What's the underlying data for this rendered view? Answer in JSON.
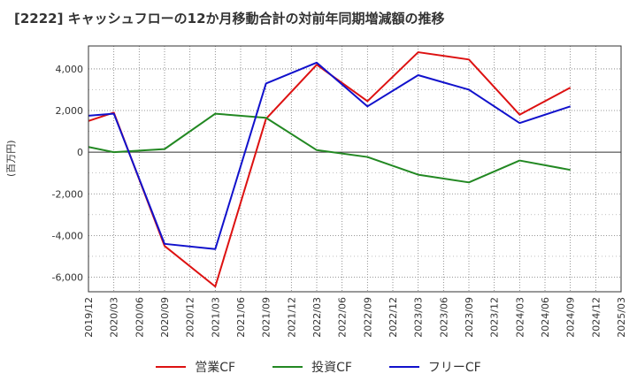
{
  "chart_data": {
    "type": "line",
    "title": "[2222]  キャッシュフローの12か月移動合計の対前年同期増減額の推移",
    "ylabel": "(百万円)",
    "xlabel": "",
    "ylim": [
      -6700,
      5100
    ],
    "yticks": [
      4000,
      2000,
      0,
      -2000,
      -4000,
      -6000
    ],
    "ytick_labels": [
      "4,000",
      "2,000",
      "0",
      "-2,000",
      "-4,000",
      "-6,000"
    ],
    "x_tick_labels": [
      "2019/12",
      "2020/03",
      "2020/06",
      "2020/09",
      "2020/12",
      "2021/03",
      "2021/06",
      "2021/09",
      "2021/12",
      "2022/03",
      "2022/06",
      "2022/09",
      "2022/12",
      "2023/03",
      "2023/06",
      "2023/09",
      "2023/12",
      "2024/03",
      "2024/06",
      "2024/09",
      "2024/12",
      "2025/03"
    ],
    "grid": true,
    "legend_position": "bottom",
    "series": [
      {
        "name": "営業CF",
        "color": "#dd1111",
        "x_index": [
          0,
          1,
          3,
          5,
          7,
          9,
          11,
          13,
          15,
          17,
          19
        ],
        "values": [
          1500,
          1900,
          -4500,
          -6450,
          1600,
          4200,
          2450,
          4800,
          4450,
          1800,
          3100
        ]
      },
      {
        "name": "投資CF",
        "color": "#228822",
        "x_index": [
          0,
          1,
          3,
          5,
          7,
          9,
          11,
          13,
          15,
          17,
          19
        ],
        "values": [
          250,
          0,
          150,
          1850,
          1650,
          100,
          -230,
          -1080,
          -1450,
          -400,
          -850
        ]
      },
      {
        "name": "フリーCF",
        "color": "#1111cc",
        "x_index": [
          0,
          1,
          3,
          5,
          7,
          9,
          11,
          13,
          15,
          17,
          19
        ],
        "values": [
          1750,
          1850,
          -4400,
          -4650,
          3300,
          4300,
          2200,
          3700,
          3000,
          1400,
          2200
        ]
      }
    ]
  }
}
